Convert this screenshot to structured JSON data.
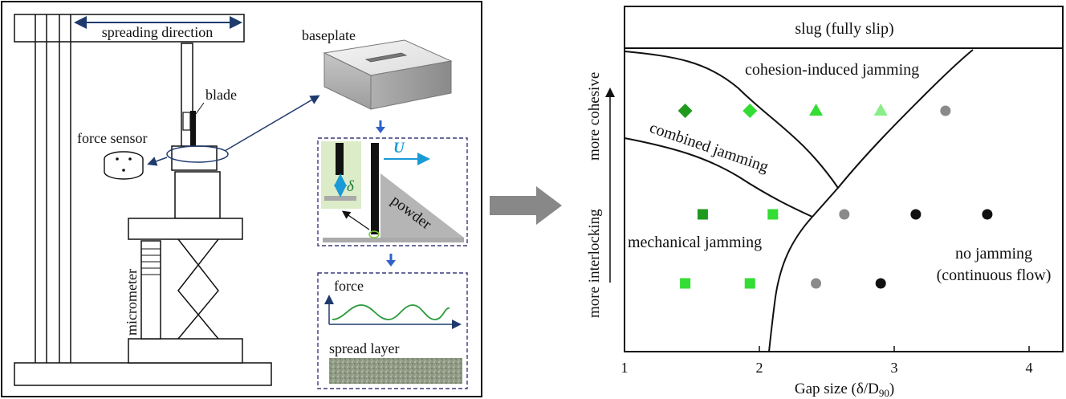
{
  "setup": {
    "spreading_direction": "spreading direction",
    "baseplate": "baseplate",
    "blade": "blade",
    "force_sensor": "force sensor",
    "micrometer": "micrometer",
    "delta": "δ",
    "velocity": "U",
    "powder": "powder",
    "force": "force",
    "spread_layer": "spread layer"
  },
  "regime_map": {
    "regions": {
      "slug": "slug (fully slip)",
      "cohesion": "cohesion-induced jamming",
      "combined": "combined jamming",
      "mechanical": "mechanical jamming",
      "no_jamming_1": "no jamming",
      "no_jamming_2": "(continuous flow)"
    },
    "axes": {
      "x_label": "Gap size (δ/D",
      "x_label_sub": "90",
      "x_label_close": ")",
      "y_label_top": "more cohesive",
      "y_label_bottom": "more interlocking",
      "x_ticks": [
        "1",
        "2",
        "3",
        "4"
      ]
    },
    "colors": {
      "dark_green": "#1f9a1f",
      "green": "#33dd33",
      "light_green": "#88ee88",
      "gray": "#8a8a8a",
      "black": "#111111"
    },
    "markers": [
      {
        "shape": "diamond",
        "color": "dark_green",
        "x": 1.45,
        "row": "top"
      },
      {
        "shape": "diamond",
        "color": "green",
        "x": 1.93,
        "row": "top"
      },
      {
        "shape": "triangle",
        "color": "green",
        "x": 2.42,
        "row": "top"
      },
      {
        "shape": "triangle",
        "color": "light_green",
        "x": 2.9,
        "row": "top"
      },
      {
        "shape": "circle",
        "color": "gray",
        "x": 3.38,
        "row": "top"
      },
      {
        "shape": "square",
        "color": "dark_green",
        "x": 1.58,
        "row": "middle"
      },
      {
        "shape": "square",
        "color": "green",
        "x": 2.1,
        "row": "middle"
      },
      {
        "shape": "circle",
        "color": "gray",
        "x": 2.63,
        "row": "middle"
      },
      {
        "shape": "circle",
        "color": "black",
        "x": 3.16,
        "row": "middle"
      },
      {
        "shape": "circle",
        "color": "black",
        "x": 3.69,
        "row": "middle"
      },
      {
        "shape": "square",
        "color": "green",
        "x": 1.45,
        "row": "bottom"
      },
      {
        "shape": "square",
        "color": "green",
        "x": 1.93,
        "row": "bottom"
      },
      {
        "shape": "circle",
        "color": "gray",
        "x": 2.42,
        "row": "bottom"
      },
      {
        "shape": "circle",
        "color": "black",
        "x": 2.9,
        "row": "bottom"
      }
    ]
  }
}
